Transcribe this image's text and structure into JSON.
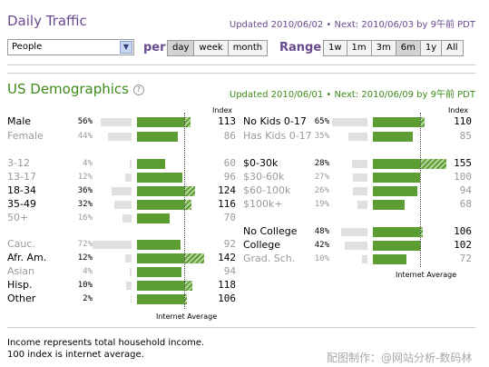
{
  "header": {
    "title": "Daily Traffic",
    "updated": "Updated 2010/06/02 • Next: 2010/06/03 by 9午前 PDT",
    "dropdown_value": "People",
    "per_label": "per",
    "per_options": [
      {
        "label": "day",
        "selected": true
      },
      {
        "label": "week",
        "selected": false
      },
      {
        "label": "month",
        "selected": false
      }
    ],
    "range_label": "Range",
    "range_options": [
      {
        "label": "1w",
        "selected": false
      },
      {
        "label": "1m",
        "selected": false
      },
      {
        "label": "3m",
        "selected": false
      },
      {
        "label": "6m",
        "selected": true
      },
      {
        "label": "1y",
        "selected": false
      },
      {
        "label": "All",
        "selected": false
      }
    ]
  },
  "demographics": {
    "title": "US Demographics",
    "updated": "Updated 2010/06/01 • Next: 2010/06/09 by 9午前 PDT",
    "index_header": "Index",
    "internet_average": "Internet Average",
    "left_rows": [
      {
        "label": "Male",
        "pct": "56%",
        "pct_value": 56,
        "index": "113",
        "index_value": 113,
        "strong": true
      },
      {
        "label": "Female",
        "pct": "44%",
        "pct_value": 44,
        "index": "86",
        "index_value": 86,
        "strong": false
      },
      {
        "label": "3-12",
        "pct": "4%",
        "pct_value": 4,
        "index": "60",
        "index_value": 60,
        "strong": false
      },
      {
        "label": "13-17",
        "pct": "12%",
        "pct_value": 12,
        "index": "96",
        "index_value": 96,
        "strong": false
      },
      {
        "label": "18-34",
        "pct": "36%",
        "pct_value": 36,
        "index": "124",
        "index_value": 124,
        "strong": true
      },
      {
        "label": "35-49",
        "pct": "32%",
        "pct_value": 32,
        "index": "116",
        "index_value": 116,
        "strong": true
      },
      {
        "label": "50+",
        "pct": "16%",
        "pct_value": 16,
        "index": "70",
        "index_value": 70,
        "strong": false
      },
      {
        "label": "Cauc.",
        "pct": "72%",
        "pct_value": 72,
        "index": "92",
        "index_value": 92,
        "strong": false
      },
      {
        "label": "Afr. Am.",
        "pct": "12%",
        "pct_value": 12,
        "index": "142",
        "index_value": 142,
        "strong": true
      },
      {
        "label": "Asian",
        "pct": "4%",
        "pct_value": 4,
        "index": "94",
        "index_value": 94,
        "strong": false
      },
      {
        "label": "Hisp.",
        "pct": "10%",
        "pct_value": 10,
        "index": "118",
        "index_value": 118,
        "strong": true
      },
      {
        "label": "Other",
        "pct": "2%",
        "pct_value": 2,
        "index": "106",
        "index_value": 106,
        "strong": true
      }
    ],
    "right_rows": [
      {
        "label": "No Kids 0-17",
        "pct": "65%",
        "pct_value": 65,
        "index": "110",
        "index_value": 110,
        "strong": true
      },
      {
        "label": "Has Kids 0-17",
        "pct": "35%",
        "pct_value": 35,
        "index": "85",
        "index_value": 85,
        "strong": false
      },
      {
        "label": "$0-30k",
        "pct": "28%",
        "pct_value": 28,
        "index": "155",
        "index_value": 155,
        "strong": true
      },
      {
        "label": "$30-60k",
        "pct": "27%",
        "pct_value": 27,
        "index": "100",
        "index_value": 100,
        "strong": false
      },
      {
        "label": "$60-100k",
        "pct": "26%",
        "pct_value": 26,
        "index": "94",
        "index_value": 94,
        "strong": false
      },
      {
        "label": "$100k+",
        "pct": "19%",
        "pct_value": 19,
        "index": "68",
        "index_value": 68,
        "strong": false
      },
      {
        "label": "No College",
        "pct": "48%",
        "pct_value": 48,
        "index": "106",
        "index_value": 106,
        "strong": true
      },
      {
        "label": "College",
        "pct": "42%",
        "pct_value": 42,
        "index": "102",
        "index_value": 102,
        "strong": true
      },
      {
        "label": "Grad. Sch.",
        "pct": "10%",
        "pct_value": 10,
        "index": "72",
        "index_value": 72,
        "strong": false
      }
    ]
  },
  "footer": {
    "line1": "Income represents total household income.",
    "line2": "100 index is internet average.",
    "watermark": "配图制作：@网站分析-数码林"
  },
  "colors": {
    "purple": "#6a4a8e",
    "green": "#5b9c33",
    "dark_green": "#3e8a18",
    "gray_bar": "#e0e0e0"
  }
}
